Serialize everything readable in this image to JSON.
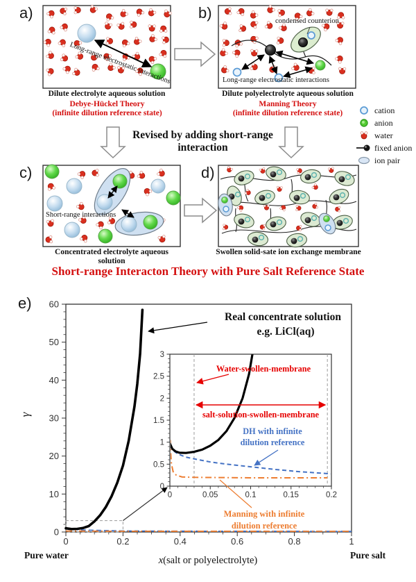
{
  "panels": {
    "a": {
      "label": "a)",
      "caption": "Dilute electrolyte aqueous solution",
      "theory": "Debye-Hückel Theory",
      "theory_sub": "(infinite dilution reference state)",
      "annotation": "Long-range electrostatic interactions"
    },
    "b": {
      "label": "b)",
      "caption": "Dilute polyelectrolyte aqueous solution",
      "theory": "Manning Theory",
      "theory_sub": "(infinite dilution reference state)",
      "annotation_top": "condensed counterion",
      "annotation_bottom": "Long-range electrostatic interactions"
    },
    "c": {
      "label": "c)",
      "caption": "Concentrated electrolyte aqueous solution",
      "annotation": "Short-range interactions"
    },
    "d": {
      "label": "d)",
      "caption": "Swollen solid-sate ion exchange membrane"
    },
    "e": {
      "label": "e)"
    }
  },
  "revision_text": "Revised by adding short-range interaction",
  "headline": "Short-range Interacton Theory with Pure Salt Reference State",
  "legend": {
    "items": [
      {
        "name": "cation",
        "label": "cation"
      },
      {
        "name": "anion",
        "label": "anion"
      },
      {
        "name": "water",
        "label": "water"
      },
      {
        "name": "fixed-anion",
        "label": "fixed anion"
      },
      {
        "name": "ion-pair",
        "label": "ion pair"
      }
    ]
  },
  "colors": {
    "red_text": "#d40f0f",
    "chart_red": "#e60000",
    "dh_blue": "#4472c4",
    "manning_orange": "#ed7d31",
    "axis": "#333333"
  },
  "chart_data": {
    "type": "line",
    "main": {
      "title_annotation_line1": "Real concentrate solution",
      "title_annotation_line2": "e.g. LiCl(aq)",
      "ylabel": "γ",
      "xlabel_italic": "x",
      "xlabel_rest": "(salt or polyelectrolyte)",
      "x_left_label": "Pure water",
      "x_right_label": "Pure salt",
      "xlim": [
        0,
        1
      ],
      "ylim": [
        0,
        60
      ],
      "xticks": [
        "0",
        "0.2",
        "0.4",
        "0.6",
        "0.8",
        "1"
      ],
      "yticks": [
        "0",
        "10",
        "20",
        "30",
        "40",
        "50",
        "60"
      ],
      "zoom_box": {
        "x": [
          0,
          0.2
        ],
        "y": [
          0,
          3
        ]
      },
      "series": [
        {
          "name": "Real concentrate solution e.g. LiCl(aq)",
          "color": "#000000",
          "style": "solid",
          "points": [
            [
              0,
              0.97
            ],
            [
              0.02,
              0.76
            ],
            [
              0.04,
              0.83
            ],
            [
              0.06,
              1.05
            ],
            [
              0.08,
              1.55
            ],
            [
              0.1,
              2.8
            ],
            [
              0.12,
              4.4
            ],
            [
              0.14,
              6.6
            ],
            [
              0.16,
              9.4
            ],
            [
              0.18,
              13
            ],
            [
              0.2,
              17.5
            ],
            [
              0.22,
              24
            ],
            [
              0.24,
              33
            ],
            [
              0.25,
              39
            ],
            [
              0.26,
              47
            ],
            [
              0.268,
              58.5
            ]
          ]
        },
        {
          "name": "DH with infinite dilution reference",
          "color": "#4472c4",
          "style": "dashed",
          "points": [
            [
              0,
              0.93
            ],
            [
              0.05,
              0.55
            ],
            [
              0.1,
              0.44
            ],
            [
              0.2,
              0.28
            ],
            [
              0.4,
              0.22
            ],
            [
              0.7,
              0.18
            ],
            [
              1,
              0.15
            ]
          ]
        },
        {
          "name": "Manning with infinite dilution reference",
          "color": "#ed7d31",
          "style": "dashdot",
          "points": [
            [
              0,
              0.25
            ],
            [
              0.2,
              0.2
            ],
            [
              1,
              0.19
            ]
          ]
        }
      ]
    },
    "inset": {
      "xlim": [
        0,
        0.2
      ],
      "ylim": [
        0,
        3
      ],
      "xticks": [
        "0",
        "0.05",
        "0.1",
        "0.15",
        "0.2"
      ],
      "yticks": [
        "0",
        "0.5",
        "1",
        "1.5",
        "2",
        "2.5",
        "3"
      ],
      "dashed_x": [
        0.03,
        0.195
      ],
      "labels": {
        "water_membrane": "Water-swollen-membrane",
        "salt_membrane": "salt-solution-swollen-membrane",
        "dh_line1": "DH with infinite",
        "dh_line2": "dilution reference",
        "manning_line1": "Manning with infinite",
        "manning_line2": "dilution reference"
      },
      "series": [
        {
          "name": "swollen membrane",
          "color": "#000000",
          "style": "solid",
          "points": [
            [
              0,
              0.97
            ],
            [
              0.003,
              0.85
            ],
            [
              0.007,
              0.79
            ],
            [
              0.012,
              0.76
            ],
            [
              0.02,
              0.755
            ],
            [
              0.03,
              0.78
            ],
            [
              0.04,
              0.83
            ],
            [
              0.05,
              0.92
            ],
            [
              0.06,
              1.05
            ],
            [
              0.07,
              1.25
            ],
            [
              0.08,
              1.55
            ],
            [
              0.09,
              2.0
            ],
            [
              0.098,
              2.55
            ],
            [
              0.105,
              3.3
            ]
          ]
        },
        {
          "name": "DH with infinite dilution reference",
          "color": "#4472c4",
          "style": "dashed",
          "points": [
            [
              0,
              0.93
            ],
            [
              0.005,
              0.8
            ],
            [
              0.01,
              0.73
            ],
            [
              0.02,
              0.66
            ],
            [
              0.03,
              0.62
            ],
            [
              0.05,
              0.55
            ],
            [
              0.07,
              0.5
            ],
            [
              0.1,
              0.44
            ],
            [
              0.13,
              0.38
            ],
            [
              0.16,
              0.33
            ],
            [
              0.2,
              0.28
            ]
          ]
        },
        {
          "name": "Manning with infinite dilution reference",
          "color": "#ed7d31",
          "style": "dashdot",
          "points": [
            [
              0.0005,
              1.05
            ],
            [
              0.001,
              0.75
            ],
            [
              0.002,
              0.5
            ],
            [
              0.004,
              0.33
            ],
            [
              0.008,
              0.25
            ],
            [
              0.015,
              0.21
            ],
            [
              0.03,
              0.2
            ],
            [
              0.06,
              0.195
            ],
            [
              0.1,
              0.19
            ],
            [
              0.15,
              0.19
            ],
            [
              0.195,
              0.19
            ]
          ]
        }
      ]
    }
  }
}
